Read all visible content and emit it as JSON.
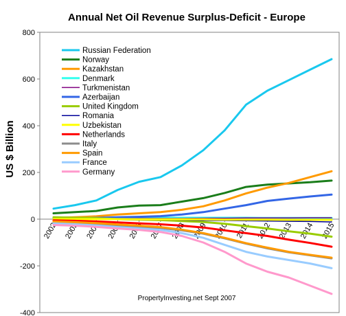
{
  "chart_data": {
    "type": "line",
    "title": "Annual Net Oil Revenue Surplus-Deficit  - Europe",
    "ylabel": "US $ Billion",
    "xlabel": "",
    "ylim": [
      -400,
      800
    ],
    "yticks": [
      -400,
      -200,
      0,
      200,
      400,
      600,
      800
    ],
    "xticks": [
      2002,
      2003,
      2004,
      2005,
      2006,
      2007,
      2008,
      2009,
      2010,
      2011,
      2012,
      2013,
      2014,
      2015
    ],
    "x": [
      2002,
      2003,
      2004,
      2005,
      2006,
      2007,
      2008,
      2009,
      2010,
      2011,
      2012,
      2013,
      2014,
      2015
    ],
    "grid": false,
    "legend_placement": "top-left",
    "annotation": "PropertyInvesting.net     Sept 2007",
    "series": [
      {
        "name": "Russian Federation",
        "color": "#19c8ee",
        "values": [
          45,
          60,
          80,
          125,
          160,
          180,
          230,
          295,
          380,
          490,
          550,
          595,
          640,
          685
        ]
      },
      {
        "name": "Norway",
        "color": "#1a7d1a",
        "values": [
          25,
          30,
          35,
          50,
          58,
          60,
          75,
          90,
          112,
          138,
          148,
          153,
          158,
          165
        ]
      },
      {
        "name": "Kazakhstan",
        "color": "#ff9a00",
        "values": [
          5,
          8,
          12,
          20,
          25,
          30,
          40,
          55,
          80,
          110,
          135,
          155,
          180,
          205
        ]
      },
      {
        "name": "Denmark",
        "color": "#33ffee",
        "values": [
          5,
          5,
          5,
          5,
          6,
          6,
          6,
          6,
          6,
          6,
          5,
          5,
          5,
          5
        ]
      },
      {
        "name": "Turkmenistan",
        "color": "#800080",
        "values": [
          1,
          1,
          2,
          2,
          3,
          3,
          3,
          4,
          4,
          5,
          5,
          5,
          6,
          6
        ]
      },
      {
        "name": "Azerbaijan",
        "color": "#3366e6",
        "values": [
          2,
          3,
          5,
          8,
          10,
          13,
          20,
          30,
          45,
          60,
          78,
          88,
          97,
          105
        ]
      },
      {
        "name": "United Kingdom",
        "color": "#99cc00",
        "values": [
          8,
          6,
          4,
          0,
          -2,
          -4,
          -8,
          -12,
          -20,
          -30,
          -40,
          -52,
          -62,
          -75
        ]
      },
      {
        "name": "Romania",
        "color": "#000099",
        "values": [
          -1,
          -1,
          -2,
          -2,
          -3,
          -3,
          -4,
          -5,
          -6,
          -7,
          -8,
          -9,
          -10,
          -12
        ]
      },
      {
        "name": "Uzbekistan",
        "color": "#ffff00",
        "values": [
          0,
          0,
          0,
          0,
          -1,
          -1,
          -1,
          -1,
          -2,
          -2,
          -2,
          -3,
          -3,
          -3
        ]
      },
      {
        "name": "Netherlands",
        "color": "#ff0000",
        "values": [
          -5,
          -7,
          -10,
          -14,
          -18,
          -22,
          -28,
          -36,
          -48,
          -60,
          -72,
          -88,
          -102,
          -118
        ]
      },
      {
        "name": "Italy",
        "color": "#8c8c8c",
        "values": [
          -15,
          -18,
          -22,
          -28,
          -33,
          -38,
          -48,
          -62,
          -82,
          -105,
          -125,
          -142,
          -155,
          -168
        ]
      },
      {
        "name": "Spain",
        "color": "#ff9a00",
        "values": [
          -10,
          -13,
          -17,
          -23,
          -28,
          -34,
          -45,
          -60,
          -80,
          -103,
          -122,
          -140,
          -153,
          -165
        ]
      },
      {
        "name": "France",
        "color": "#99ccff",
        "values": [
          -18,
          -22,
          -27,
          -34,
          -40,
          -46,
          -60,
          -80,
          -110,
          -140,
          -160,
          -175,
          -190,
          -210
        ]
      },
      {
        "name": "Germany",
        "color": "#ff99cc",
        "values": [
          -25,
          -28,
          -33,
          -40,
          -46,
          -55,
          -72,
          -100,
          -140,
          -190,
          -225,
          -250,
          -285,
          -320
        ]
      }
    ]
  }
}
